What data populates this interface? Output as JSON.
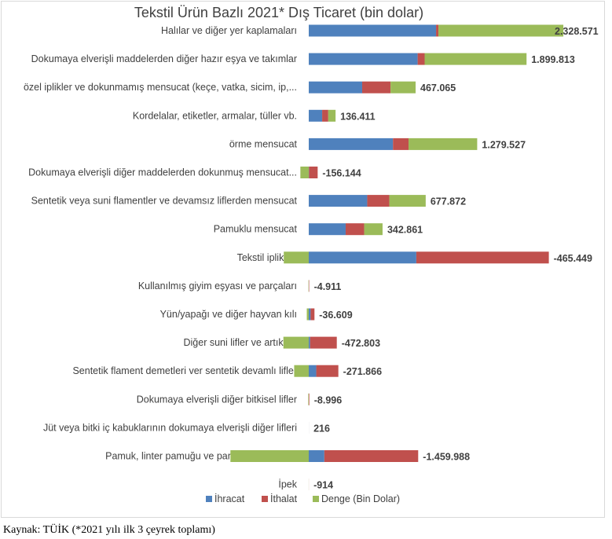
{
  "chart_data": {
    "type": "bar",
    "orientation": "horizontal",
    "stacked": true,
    "title": "Tekstil Ürün Bazlı 2021* Dış Ticaret (bin dolar)",
    "categories": [
      "Halılar ve diğer yer kaplamaları",
      "Dokumaya elverişli maddelerden diğer hazır eşya ve takımlar",
      "özel iplikler ve dokunmamış mensucat (keçe, vatka, sicim, ip,...",
      "Kordelalar, etiketler, armalar, tüller vb.",
      "örme mensucat",
      "Dokumaya elverişli diğer maddelerden dokunmuş mensucat...",
      "Sentetik veya suni flamentler ve devamsız liflerden mensucat",
      "Pamuklu mensucat",
      "Tekstil iplikleri",
      "Kullanılmış giyim eşyası ve parçaları",
      "Yün/yapağı ve diğer hayvan kılı",
      "Diğer suni lifler ve artıkları",
      "Sentetik flament demetleri ver sentetik devamlı lifler",
      "Dokumaya elverişli diğer bitkisel lifler",
      "Jüt veya bitki iç kabuklarının dokumaya elverişli diğer lifleri",
      "Pamuk, linter pamuğu ve pamuk döküntüleri",
      "İpek"
    ],
    "series": [
      {
        "name": "İhracat",
        "color": "#4f81bd",
        "values": [
          2373000,
          2030000,
          996000,
          250000,
          1570000,
          5000,
          1090000,
          688000,
          2005000,
          2000,
          35000,
          25000,
          140000,
          1000,
          500,
          290000,
          100
        ]
      },
      {
        "name": "İthalat",
        "color": "#c0504d",
        "values": [
          44429,
          130187,
          528935,
          113589,
          290473,
          161144,
          412128,
          345139,
          2470449,
          6911,
          71609,
          497803,
          411866,
          9996,
          284,
          1749988,
          1014
        ]
      },
      {
        "name": "Denge (Bin Dolar)",
        "color": "#9bbb59",
        "values": [
          2328571,
          1899813,
          467065,
          136411,
          1279527,
          -156144,
          677872,
          342861,
          -465449,
          -4911,
          -36609,
          -472803,
          -271866,
          -8996,
          216,
          -1459988,
          -914
        ]
      }
    ],
    "data_labels": [
      "2.328.571",
      "1.899.813",
      "467.065",
      "136.411",
      "1.279.527",
      "-156.144",
      "677.872",
      "342.861",
      "-465.449",
      "-4.911",
      "-36.609",
      "-472.803",
      "-271.866",
      "-8.996",
      "216",
      "-1.459.988",
      "-914"
    ],
    "legend_position": "bottom",
    "grid": false
  },
  "source": "Kaynak:  TÜİK  (*2021 yılı ilk 3 çeyrek toplamı)"
}
